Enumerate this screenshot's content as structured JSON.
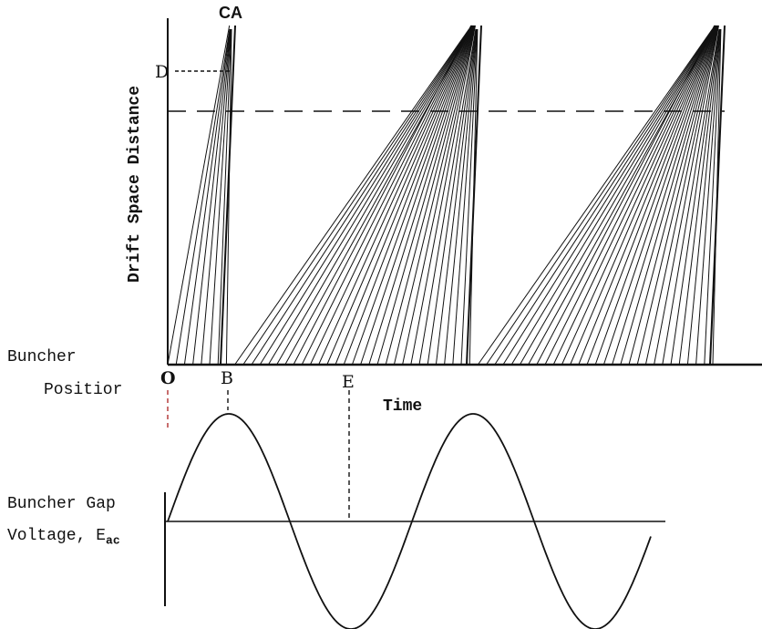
{
  "labels": {
    "top_label": "CA",
    "d_label": "D",
    "y_axis": "Drift Space Distance",
    "buncher_label_1": "Buncher",
    "buncher_label_2": "Positior",
    "o_label": "O",
    "b_label": "B",
    "e_label": "E",
    "time_label": "Time",
    "gap_label_1": "Buncher Gap",
    "gap_label_2": "Voltage, E",
    "gap_subscript": "ac"
  },
  "colors": {
    "ink": "#111111",
    "guide": "#b03030"
  }
}
